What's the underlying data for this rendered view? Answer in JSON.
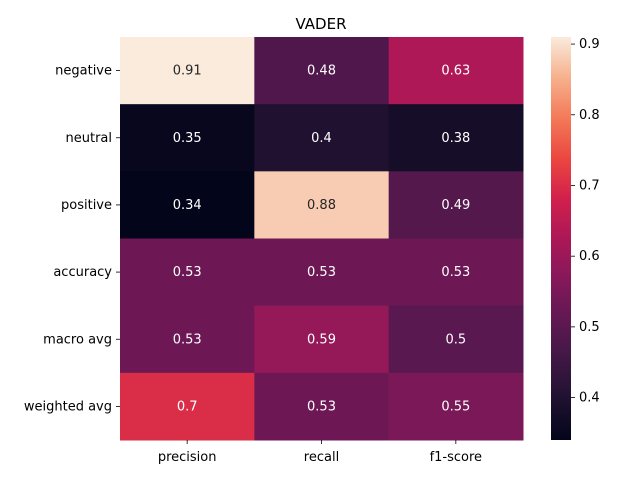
{
  "chart_data": {
    "type": "heatmap",
    "title": "VADER",
    "xlabel": "",
    "ylabel": "",
    "x_categories": [
      "precision",
      "recall",
      "f1-score"
    ],
    "y_categories": [
      "negative",
      "neutral",
      "positive",
      "accuracy",
      "macro avg",
      "weighted avg"
    ],
    "values": [
      [
        0.91,
        0.48,
        0.63
      ],
      [
        0.35,
        0.4,
        0.38
      ],
      [
        0.34,
        0.88,
        0.49
      ],
      [
        0.53,
        0.53,
        0.53
      ],
      [
        0.53,
        0.59,
        0.5
      ],
      [
        0.7,
        0.53,
        0.55
      ]
    ],
    "value_labels": [
      [
        "0.91",
        "0.48",
        "0.63"
      ],
      [
        "0.35",
        "0.4",
        "0.38"
      ],
      [
        "0.34",
        "0.88",
        "0.49"
      ],
      [
        "0.53",
        "0.53",
        "0.53"
      ],
      [
        "0.53",
        "0.59",
        "0.5"
      ],
      [
        "0.7",
        "0.53",
        "0.55"
      ]
    ],
    "colormap": "rocket",
    "color_range": [
      0.34,
      0.91
    ],
    "colorbar": {
      "ticks": [
        0.4,
        0.5,
        0.6,
        0.7,
        0.8,
        0.9
      ],
      "tick_labels": [
        "0.4",
        "0.5",
        "0.6",
        "0.7",
        "0.8",
        "0.9"
      ]
    },
    "grid": false,
    "colorbar_position": "right"
  }
}
